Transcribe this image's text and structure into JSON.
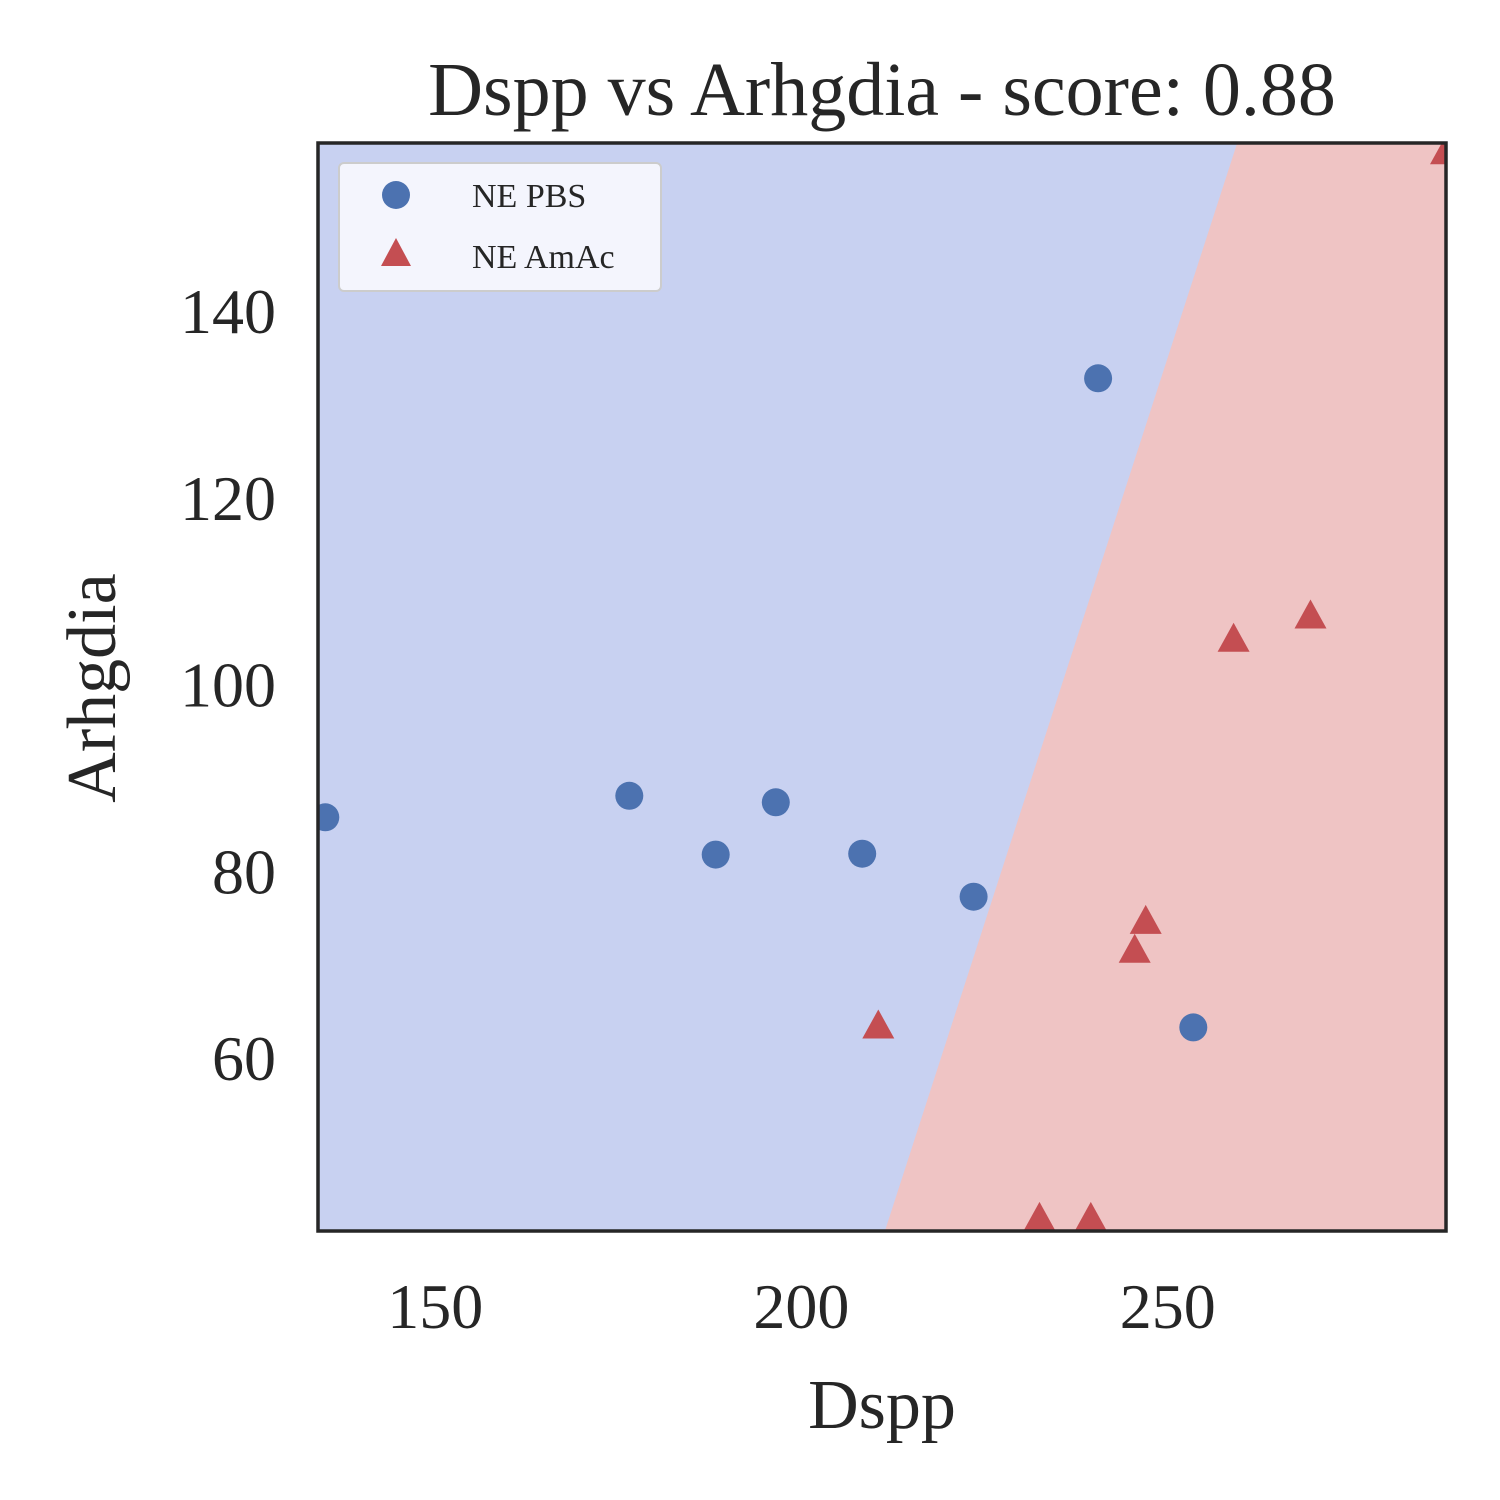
{
  "chart_data": {
    "type": "scatter",
    "title": "Dspp vs Arhgdia - score: 0.88",
    "xlabel": "Dspp",
    "ylabel": "Arhgdia",
    "xlim": [
      134,
      288
    ],
    "ylim": [
      41.5,
      158
    ],
    "x_ticks": [
      {
        "value": 150,
        "label": "150"
      },
      {
        "value": 200,
        "label": "200"
      },
      {
        "value": 250,
        "label": "250"
      }
    ],
    "y_ticks": [
      {
        "value": 60,
        "label": "60"
      },
      {
        "value": 80,
        "label": "80"
      },
      {
        "value": 100,
        "label": "100"
      },
      {
        "value": 120,
        "label": "120"
      },
      {
        "value": 140,
        "label": "140"
      }
    ],
    "grid": false,
    "legend_position": "top-left",
    "decision_boundary": {
      "points": [
        [
          211.4,
          41.5
        ],
        [
          259.5,
          158
        ]
      ],
      "left_region_color": "#c8d1f1",
      "right_region_color": "#efc4c4"
    },
    "series": [
      {
        "name": "NE PBS",
        "marker": "circle",
        "color": "#4c72b0",
        "points": [
          [
            135,
            85.8
          ],
          [
            176.5,
            88.1
          ],
          [
            188.3,
            81.8
          ],
          [
            196.5,
            87.4
          ],
          [
            208.3,
            81.9
          ],
          [
            223.5,
            77.3
          ],
          [
            240.5,
            132.8
          ],
          [
            253.5,
            63.3
          ]
        ]
      },
      {
        "name": "NE AmAc",
        "marker": "triangle",
        "color": "#c44e52",
        "points": [
          [
            210.5,
            63.4
          ],
          [
            232.5,
            42.8
          ],
          [
            239.5,
            42.8
          ],
          [
            245.5,
            71.5
          ],
          [
            247,
            74.6
          ],
          [
            259,
            104.8
          ],
          [
            269.5,
            107.3
          ],
          [
            288,
            157
          ]
        ]
      }
    ]
  }
}
